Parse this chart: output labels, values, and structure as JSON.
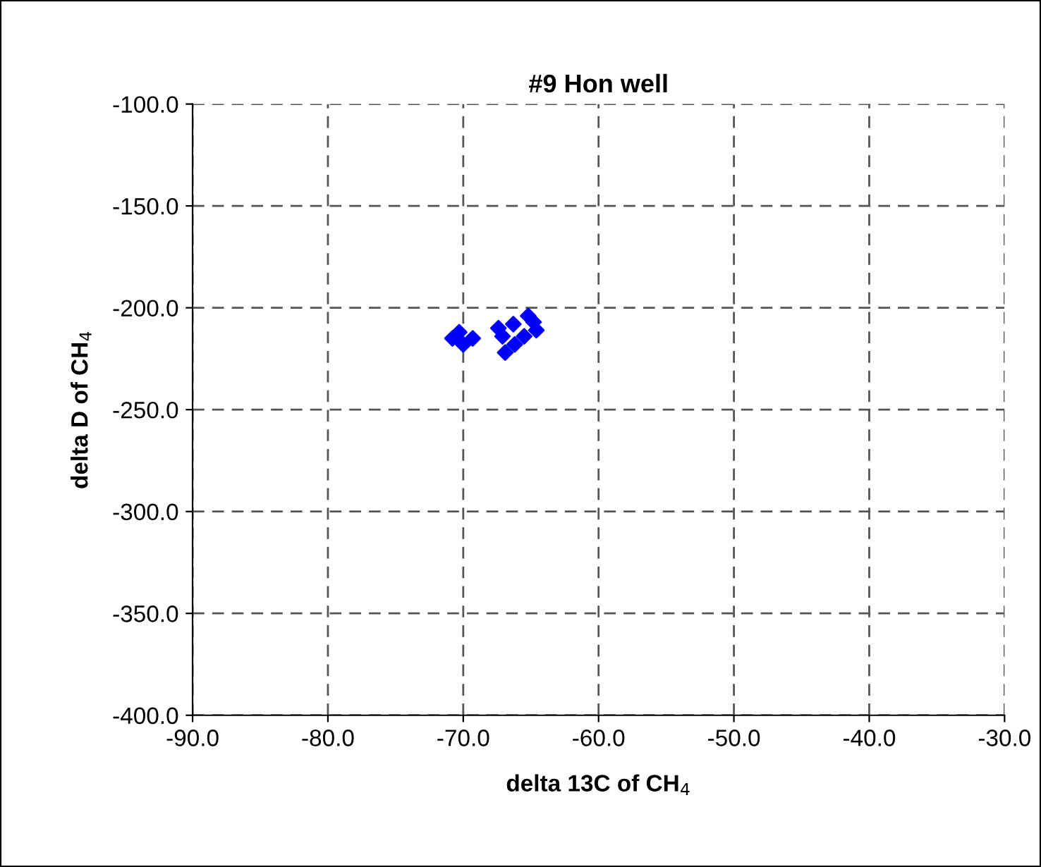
{
  "chart_data": {
    "type": "scatter",
    "title": "#9 Hon well",
    "xlabel": "delta 13C of CH$_{4}$",
    "ylabel": "delta D of CH$_{4}$",
    "x": [
      -70.8,
      -70.3,
      -69.3,
      -70.0,
      -67.4,
      -67.1,
      -66.9,
      -66.3,
      -65.2,
      -64.8,
      -64.6,
      -65.5,
      -66.2
    ],
    "values": [
      -215,
      -212,
      -215,
      -218,
      -210,
      -214,
      -222,
      -208,
      -204,
      -207,
      -211,
      -214,
      -218
    ],
    "color": "#0000ff",
    "marker": "diamond",
    "xlim": [
      -90,
      -30
    ],
    "ylim": [
      -400,
      -100
    ],
    "xticks": [
      {
        "value": -90,
        "label": "-90.0"
      },
      {
        "value": -80,
        "label": "-80.0"
      },
      {
        "value": -70,
        "label": "-70.0"
      },
      {
        "value": -60,
        "label": "-60.0"
      },
      {
        "value": -50,
        "label": "-50.0"
      },
      {
        "value": -40,
        "label": "-40.0"
      },
      {
        "value": -30,
        "label": "-30.0"
      }
    ],
    "yticks": [
      {
        "value": -400,
        "label": "-400.0"
      },
      {
        "value": -350,
        "label": "-350.0"
      },
      {
        "value": -300,
        "label": "-300.0"
      },
      {
        "value": -250,
        "label": "-250.0"
      },
      {
        "value": -200,
        "label": "-200.0"
      },
      {
        "value": -150,
        "label": "-150.0"
      },
      {
        "value": -100,
        "label": "-100.0"
      }
    ],
    "grid": true,
    "legend": false
  }
}
